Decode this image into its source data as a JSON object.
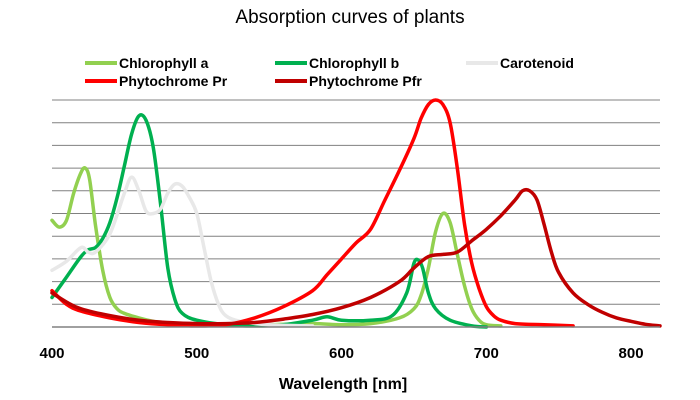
{
  "chart_data": {
    "type": "line",
    "title": "Absorption curves of plants",
    "xlabel": "Wavelength [nm]",
    "ylabel": "",
    "xlim": [
      400,
      820
    ],
    "ylim": [
      0,
      10
    ],
    "x_ticks": [
      "400",
      "500",
      "600",
      "700",
      "800"
    ],
    "grid": "horizontal",
    "legend_position": "top",
    "series": [
      {
        "name": "Chlorophyll a",
        "color": "#92d050",
        "points": [
          [
            400,
            4.7
          ],
          [
            405,
            4.4
          ],
          [
            410,
            4.7
          ],
          [
            415,
            5.9
          ],
          [
            420,
            6.8
          ],
          [
            423,
            7.0
          ],
          [
            426,
            6.5
          ],
          [
            430,
            4.5
          ],
          [
            435,
            2.5
          ],
          [
            440,
            1.3
          ],
          [
            445,
            0.8
          ],
          [
            450,
            0.6
          ],
          [
            460,
            0.4
          ],
          [
            470,
            0.25
          ],
          [
            480,
            0.15
          ],
          [
            500,
            0.1
          ],
          [
            550,
            0.1
          ],
          [
            580,
            0.15
          ],
          [
            600,
            0.1
          ],
          [
            620,
            0.15
          ],
          [
            640,
            0.4
          ],
          [
            650,
            0.8
          ],
          [
            655,
            1.4
          ],
          [
            660,
            2.6
          ],
          [
            665,
            4.2
          ],
          [
            670,
            5.0
          ],
          [
            675,
            4.6
          ],
          [
            680,
            3.2
          ],
          [
            685,
            1.8
          ],
          [
            690,
            0.8
          ],
          [
            695,
            0.3
          ],
          [
            700,
            0.1
          ],
          [
            710,
            0.05
          ]
        ]
      },
      {
        "name": "Chlorophyll b",
        "color": "#00b050",
        "points": [
          [
            400,
            1.3
          ],
          [
            410,
            2.2
          ],
          [
            420,
            3.1
          ],
          [
            425,
            3.4
          ],
          [
            430,
            3.5
          ],
          [
            435,
            3.9
          ],
          [
            440,
            4.6
          ],
          [
            445,
            5.7
          ],
          [
            450,
            7.1
          ],
          [
            455,
            8.5
          ],
          [
            460,
            9.3
          ],
          [
            465,
            9.1
          ],
          [
            470,
            7.9
          ],
          [
            475,
            5.4
          ],
          [
            480,
            2.6
          ],
          [
            485,
            1.2
          ],
          [
            490,
            0.6
          ],
          [
            500,
            0.3
          ],
          [
            520,
            0.1
          ],
          [
            540,
            0.05
          ],
          [
            560,
            0.1
          ],
          [
            580,
            0.3
          ],
          [
            590,
            0.45
          ],
          [
            600,
            0.3
          ],
          [
            620,
            0.3
          ],
          [
            635,
            0.5
          ],
          [
            645,
            1.5
          ],
          [
            650,
            2.8
          ],
          [
            653,
            2.95
          ],
          [
            656,
            2.6
          ],
          [
            660,
            1.5
          ],
          [
            665,
            0.8
          ],
          [
            675,
            0.3
          ],
          [
            690,
            0.05
          ],
          [
            700,
            0.0
          ]
        ]
      },
      {
        "name": "Carotenoid",
        "color": "#e8e8e8",
        "points": [
          [
            400,
            2.5
          ],
          [
            410,
            2.9
          ],
          [
            420,
            3.5
          ],
          [
            425,
            3.3
          ],
          [
            430,
            3.3
          ],
          [
            440,
            4.1
          ],
          [
            450,
            5.9
          ],
          [
            455,
            6.6
          ],
          [
            460,
            6.0
          ],
          [
            465,
            5.1
          ],
          [
            470,
            5.0
          ],
          [
            475,
            5.2
          ],
          [
            480,
            5.9
          ],
          [
            485,
            6.3
          ],
          [
            490,
            6.2
          ],
          [
            495,
            5.7
          ],
          [
            500,
            5.0
          ],
          [
            505,
            3.5
          ],
          [
            510,
            2.0
          ],
          [
            515,
            1.0
          ],
          [
            520,
            0.5
          ],
          [
            530,
            0.25
          ],
          [
            550,
            0.1
          ],
          [
            580,
            0.05
          ]
        ]
      },
      {
        "name": "Phytochrome Pr",
        "color": "#ff0000",
        "points": [
          [
            400,
            1.6
          ],
          [
            410,
            1.0
          ],
          [
            420,
            0.7
          ],
          [
            440,
            0.4
          ],
          [
            460,
            0.2
          ],
          [
            480,
            0.1
          ],
          [
            500,
            0.05
          ],
          [
            520,
            0.1
          ],
          [
            540,
            0.4
          ],
          [
            560,
            0.9
          ],
          [
            580,
            1.6
          ],
          [
            590,
            2.3
          ],
          [
            600,
            3.0
          ],
          [
            610,
            3.7
          ],
          [
            620,
            4.3
          ],
          [
            630,
            5.6
          ],
          [
            640,
            6.9
          ],
          [
            650,
            8.3
          ],
          [
            655,
            9.2
          ],
          [
            660,
            9.8
          ],
          [
            665,
            10.0
          ],
          [
            670,
            9.8
          ],
          [
            675,
            9.0
          ],
          [
            680,
            7.0
          ],
          [
            685,
            4.5
          ],
          [
            690,
            2.8
          ],
          [
            695,
            1.7
          ],
          [
            700,
            0.9
          ],
          [
            705,
            0.5
          ],
          [
            710,
            0.3
          ],
          [
            720,
            0.15
          ],
          [
            740,
            0.1
          ],
          [
            760,
            0.05
          ]
        ]
      },
      {
        "name": "Phytochrome Pfr",
        "color": "#c00000",
        "points": [
          [
            400,
            1.5
          ],
          [
            410,
            1.1
          ],
          [
            420,
            0.8
          ],
          [
            440,
            0.5
          ],
          [
            460,
            0.3
          ],
          [
            480,
            0.2
          ],
          [
            500,
            0.15
          ],
          [
            520,
            0.15
          ],
          [
            540,
            0.2
          ],
          [
            560,
            0.35
          ],
          [
            580,
            0.55
          ],
          [
            600,
            0.85
          ],
          [
            620,
            1.3
          ],
          [
            640,
            2.0
          ],
          [
            650,
            2.6
          ],
          [
            660,
            3.1
          ],
          [
            670,
            3.2
          ],
          [
            680,
            3.3
          ],
          [
            690,
            3.8
          ],
          [
            700,
            4.3
          ],
          [
            710,
            4.9
          ],
          [
            720,
            5.6
          ],
          [
            725,
            6.0
          ],
          [
            730,
            6.0
          ],
          [
            735,
            5.6
          ],
          [
            740,
            4.5
          ],
          [
            745,
            3.3
          ],
          [
            750,
            2.4
          ],
          [
            760,
            1.5
          ],
          [
            770,
            1.0
          ],
          [
            780,
            0.65
          ],
          [
            790,
            0.4
          ],
          [
            800,
            0.25
          ],
          [
            810,
            0.12
          ],
          [
            820,
            0.05
          ]
        ]
      }
    ]
  }
}
